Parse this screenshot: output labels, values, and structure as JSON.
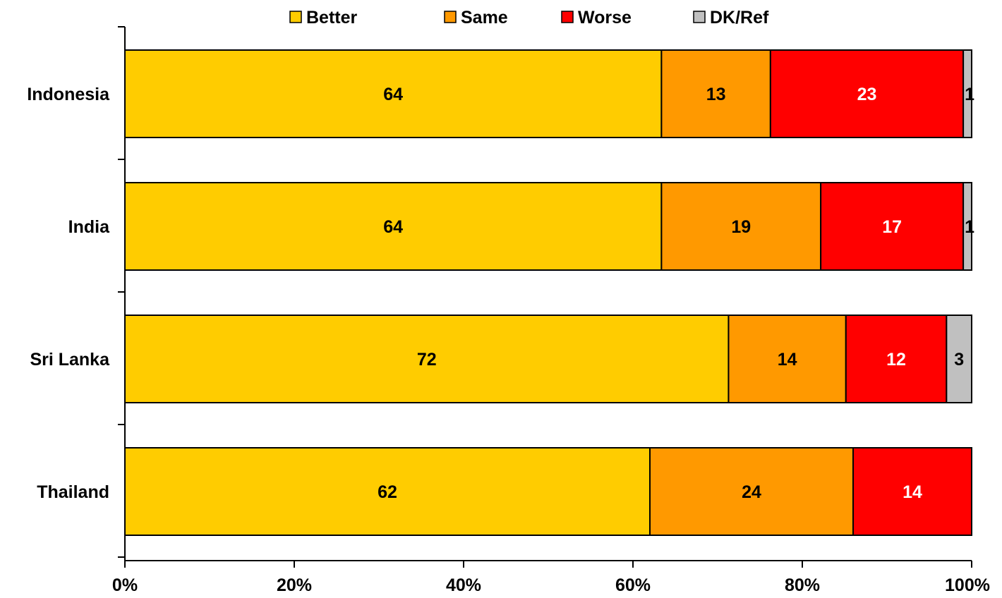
{
  "chart_data": {
    "type": "bar",
    "orientation": "horizontal",
    "stacked": true,
    "normalized": true,
    "categories": [
      "Indonesia",
      "India",
      "Sri Lanka",
      "Thailand"
    ],
    "series": [
      {
        "name": "Better",
        "color": "#FFCC00",
        "label_color": "#000000",
        "values": [
          64,
          64,
          72,
          62
        ]
      },
      {
        "name": "Same",
        "color": "#FF9900",
        "label_color": "#000000",
        "values": [
          13,
          19,
          14,
          24
        ]
      },
      {
        "name": "Worse",
        "color": "#FF0000",
        "label_color": "#FFFFFF",
        "values": [
          23,
          17,
          12,
          14
        ]
      },
      {
        "name": "DK/Ref",
        "color": "#C0C0C0",
        "label_color": "#000000",
        "values": [
          1,
          1,
          3,
          0
        ]
      }
    ],
    "x_ticks": [
      "0%",
      "20%",
      "40%",
      "60%",
      "80%",
      "100%"
    ],
    "xlim": [
      0,
      100
    ],
    "title": "",
    "xlabel": "",
    "ylabel": "",
    "grid": false,
    "legend_position": "top"
  }
}
